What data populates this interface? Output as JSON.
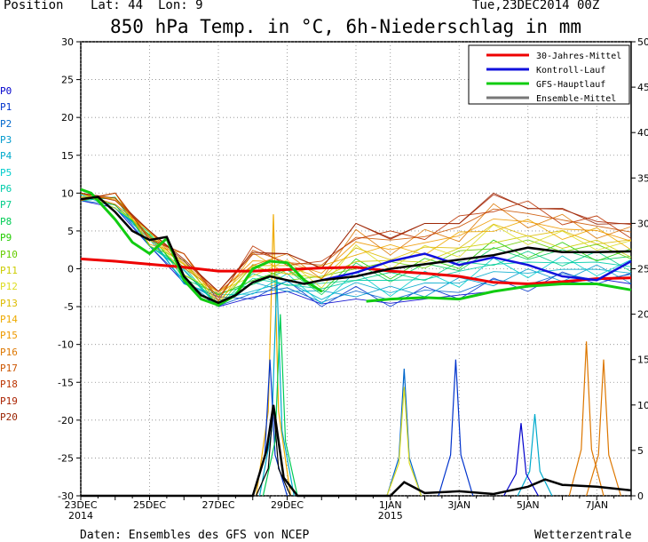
{
  "header": {
    "position_label": "Position",
    "lat_label": "Lat: 44",
    "lon_label": "Lon: 9",
    "run_time": "Tue,23DEC2014 00Z",
    "title": "850 hPa Temp. in °C, 6h-Niederschlag in mm"
  },
  "members": [
    {
      "label": "P0",
      "color": "#0000cc"
    },
    {
      "label": "P1",
      "color": "#0033cc"
    },
    {
      "label": "P2",
      "color": "#0066cc"
    },
    {
      "label": "P3",
      "color": "#0099cc"
    },
    {
      "label": "P4",
      "color": "#00aacc"
    },
    {
      "label": "P5",
      "color": "#00cccc"
    },
    {
      "label": "P6",
      "color": "#00ccaa"
    },
    {
      "label": "P7",
      "color": "#00cc88"
    },
    {
      "label": "P8",
      "color": "#00cc55"
    },
    {
      "label": "P9",
      "color": "#22cc00"
    },
    {
      "label": "P10",
      "color": "#66cc00"
    },
    {
      "label": "P11",
      "color": "#cccc00"
    },
    {
      "label": "P12",
      "color": "#dddd22"
    },
    {
      "label": "P13",
      "color": "#ddbb00"
    },
    {
      "label": "P14",
      "color": "#eeaa00"
    },
    {
      "label": "P15",
      "color": "#ee9900"
    },
    {
      "label": "P16",
      "color": "#dd7700"
    },
    {
      "label": "P17",
      "color": "#cc5500"
    },
    {
      "label": "P18",
      "color": "#bb3300"
    },
    {
      "label": "P19",
      "color": "#aa2200"
    },
    {
      "label": "P20",
      "color": "#992200"
    }
  ],
  "footer": {
    "source": "Daten: Ensembles des GFS von NCEP",
    "brand": "Wetterzentrale"
  },
  "chart_data": {
    "type": "line",
    "y_left_ticks": [
      "30",
      "25",
      "20",
      "15",
      "10",
      "5",
      "0",
      "-5",
      "-10",
      "-15",
      "-20",
      "-25",
      "-30"
    ],
    "y_right_ticks": [
      "50",
      "45",
      "40",
      "35",
      "30",
      "25",
      "20",
      "15",
      "10",
      "5",
      "0"
    ],
    "y_left_range": [
      -30,
      30
    ],
    "y_right_range": [
      0,
      50
    ],
    "x_ticks": [
      {
        "t": 0,
        "label": "23DEC",
        "sub": "2014"
      },
      {
        "t": 2,
        "label": "25DEC",
        "sub": ""
      },
      {
        "t": 4,
        "label": "27DEC",
        "sub": ""
      },
      {
        "t": 6,
        "label": "29DEC",
        "sub": ""
      },
      {
        "t": 9,
        "label": "1JAN",
        "sub": "2015"
      },
      {
        "t": 11,
        "label": "3JAN",
        "sub": ""
      },
      {
        "t": 13,
        "label": "5JAN",
        "sub": ""
      },
      {
        "t": 15,
        "label": "7JAN",
        "sub": ""
      }
    ],
    "x_range": [
      0,
      16
    ],
    "grid": true,
    "legend_position": "top-right",
    "legend": [
      {
        "name": "30-Jahres-Mittel",
        "color": "#ee0000"
      },
      {
        "name": "Kontroll-Lauf",
        "color": "#1111dd"
      },
      {
        "name": "GFS-Hauptlauf",
        "color": "#11cc11"
      },
      {
        "name": "Ensemble-Mittel",
        "color": "#777777"
      }
    ],
    "climate_mean": {
      "name": "30-Jahres-Mittel",
      "color": "#ee0000",
      "t": [
        0,
        1,
        2,
        3,
        4,
        5,
        6,
        7,
        8,
        9,
        10,
        11,
        12,
        13,
        14,
        15,
        16
      ],
      "v": [
        1.3,
        1.0,
        0.6,
        0.2,
        -0.3,
        -0.3,
        -0.1,
        0.1,
        0.2,
        -0.3,
        -0.6,
        -1.0,
        -1.8,
        -2.0,
        -1.7,
        -1.3,
        -1.2
      ]
    },
    "ensemble_mean": {
      "name": "Ensemble-Mittel",
      "color": "#000000",
      "t": [
        0,
        0.5,
        1,
        1.5,
        2,
        2.5,
        3,
        3.5,
        4,
        4.5,
        5,
        5.5,
        6,
        6.5,
        7,
        8,
        9,
        10,
        11,
        12,
        13,
        14,
        15,
        16
      ],
      "v": [
        9.2,
        9.5,
        7.5,
        5.0,
        3.8,
        4.2,
        -1.0,
        -3.5,
        -4.5,
        -3.5,
        -1.8,
        -1.0,
        -1.5,
        -2.0,
        -1.5,
        -1.0,
        0.0,
        0.6,
        1.2,
        1.8,
        2.8,
        2.2,
        2.2,
        2.3
      ]
    },
    "control_run": {
      "name": "Kontroll-Lauf",
      "color": "#1111dd",
      "t": [
        7,
        8,
        9,
        10,
        11,
        12,
        13,
        14,
        15,
        16
      ],
      "v": [
        -1.5,
        -0.5,
        1.0,
        2.0,
        0.5,
        1.5,
        0.5,
        -1.0,
        -1.5,
        1.0
      ]
    },
    "operational_run": {
      "name": "GFS-Hauptlauf",
      "color": "#11cc11",
      "t": [
        0,
        0.3,
        1,
        1.5,
        2,
        2.5,
        3,
        3.5,
        4,
        4.5,
        5,
        5.5,
        6,
        6.5,
        7
      ],
      "v": [
        10.5,
        10.0,
        6.5,
        3.5,
        2.0,
        4.0,
        -1.5,
        -4.0,
        -4.8,
        -3.5,
        0.0,
        1.0,
        0.8,
        -1.5,
        -3.0
      ],
      "t2": [
        8.3,
        9,
        10,
        11,
        12,
        13,
        14,
        15,
        16
      ],
      "v2": [
        -4.3,
        -4.0,
        -3.8,
        -4.0,
        -3.0,
        -2.3,
        -2.0,
        -2.0,
        -2.8
      ]
    },
    "ensemble_members_t2m_spread": {
      "t": [
        0,
        1,
        2,
        3,
        4,
        5,
        6,
        7,
        8,
        9,
        10,
        11,
        12,
        13,
        14,
        15,
        16
      ],
      "max": [
        10,
        10,
        5,
        2,
        -3,
        3,
        2,
        1,
        6,
        5,
        6,
        7,
        10,
        9,
        8,
        7,
        6
      ],
      "min": [
        9,
        8,
        3,
        -2,
        -5,
        -4,
        -3,
        -5,
        -4,
        -5,
        -4,
        -4,
        -3,
        -3,
        -2,
        -2,
        -2
      ]
    },
    "precip_peaks": [
      {
        "t": 5.6,
        "mm": 31,
        "color": "#eeaa00"
      },
      {
        "t": 5.7,
        "mm": 24,
        "color": "#00aacc"
      },
      {
        "t": 5.5,
        "mm": 15,
        "color": "#0033cc"
      },
      {
        "t": 5.8,
        "mm": 20,
        "color": "#00cc55"
      },
      {
        "t": 5.6,
        "mm": 10,
        "color": "#000000"
      },
      {
        "t": 9.4,
        "mm": 14,
        "color": "#0066cc"
      },
      {
        "t": 9.4,
        "mm": 12,
        "color": "#dddd22"
      },
      {
        "t": 10.9,
        "mm": 15,
        "color": "#0033cc"
      },
      {
        "t": 13.2,
        "mm": 9,
        "color": "#00aacc"
      },
      {
        "t": 14.7,
        "mm": 17,
        "color": "#dd7700"
      },
      {
        "t": 15.2,
        "mm": 15,
        "color": "#dd7700"
      },
      {
        "t": 12.8,
        "mm": 8,
        "color": "#0000cc"
      }
    ],
    "precip_mean": {
      "t": [
        0,
        5,
        5.4,
        5.6,
        5.9,
        6.3,
        7,
        9,
        9.4,
        10,
        11,
        12,
        13,
        13.5,
        14,
        15,
        16
      ],
      "mm": [
        0,
        0,
        5,
        10,
        2,
        0,
        0,
        0,
        1.5,
        0.3,
        0.5,
        0.2,
        1,
        1.8,
        1.2,
        1,
        0.6
      ]
    }
  }
}
